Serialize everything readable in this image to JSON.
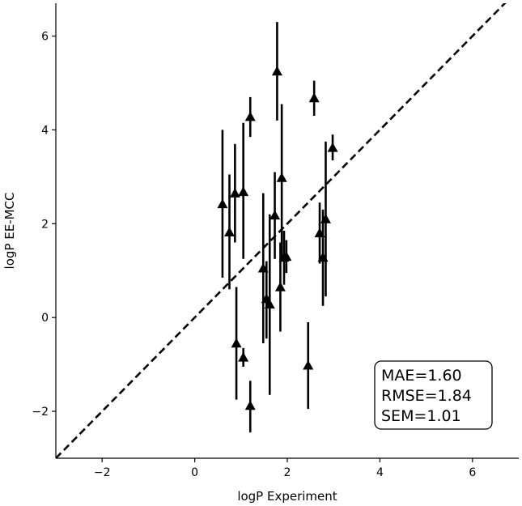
{
  "chart_data": {
    "type": "scatter",
    "xlabel": "logP Experiment",
    "ylabel": "logP EE-MCC",
    "xlim": [
      -3,
      7
    ],
    "ylim": [
      -3,
      6.7
    ],
    "xticks": [
      -2,
      0,
      2,
      4,
      6
    ],
    "yticks": [
      -2,
      0,
      2,
      4,
      6
    ],
    "tick_labels_x": [
      "−2",
      "0",
      "2",
      "4",
      "6"
    ],
    "tick_labels_y": [
      "−2",
      "0",
      "2",
      "4",
      "6"
    ],
    "grid": false,
    "marker": "triangle-up",
    "reference_line": {
      "style": "dashed",
      "from": [
        -3,
        -3
      ],
      "to": [
        7,
        7
      ]
    },
    "points": [
      {
        "x": 0.6,
        "y": 2.42,
        "ylow": 0.85,
        "yhigh": 4.0
      },
      {
        "x": 0.75,
        "y": 1.82,
        "ylow": 0.6,
        "yhigh": 3.05
      },
      {
        "x": 0.87,
        "y": 2.65,
        "ylow": 1.6,
        "yhigh": 3.7
      },
      {
        "x": 0.9,
        "y": -0.55,
        "ylow": -1.75,
        "yhigh": 0.65
      },
      {
        "x": 1.05,
        "y": 2.68,
        "ylow": 1.25,
        "yhigh": 4.15
      },
      {
        "x": 1.05,
        "y": -0.85,
        "ylow": -1.05,
        "yhigh": -0.65
      },
      {
        "x": 1.2,
        "y": 4.28,
        "ylow": 3.85,
        "yhigh": 4.7
      },
      {
        "x": 1.2,
        "y": -1.88,
        "ylow": -2.45,
        "yhigh": -1.35
      },
      {
        "x": 1.48,
        "y": 1.05,
        "ylow": -0.55,
        "yhigh": 2.65
      },
      {
        "x": 1.55,
        "y": 0.4,
        "ylow": -0.45,
        "yhigh": 1.2
      },
      {
        "x": 1.62,
        "y": 0.28,
        "ylow": -1.65,
        "yhigh": 2.2
      },
      {
        "x": 1.73,
        "y": 2.18,
        "ylow": 1.25,
        "yhigh": 3.1
      },
      {
        "x": 1.78,
        "y": 5.25,
        "ylow": 4.2,
        "yhigh": 6.3
      },
      {
        "x": 1.85,
        "y": 0.65,
        "ylow": -0.3,
        "yhigh": 1.6
      },
      {
        "x": 1.88,
        "y": 2.98,
        "ylow": 1.25,
        "yhigh": 4.55
      },
      {
        "x": 1.93,
        "y": 1.28,
        "ylow": 0.7,
        "yhigh": 1.85
      },
      {
        "x": 1.98,
        "y": 1.3,
        "ylow": 0.95,
        "yhigh": 1.65
      },
      {
        "x": 2.45,
        "y": -1.02,
        "ylow": -1.95,
        "yhigh": -0.1
      },
      {
        "x": 2.58,
        "y": 4.68,
        "ylow": 4.3,
        "yhigh": 5.05
      },
      {
        "x": 2.7,
        "y": 1.8,
        "ylow": 1.15,
        "yhigh": 2.45
      },
      {
        "x": 2.77,
        "y": 1.28,
        "ylow": 0.25,
        "yhigh": 2.3
      },
      {
        "x": 2.83,
        "y": 2.1,
        "ylow": 0.45,
        "yhigh": 3.75
      },
      {
        "x": 2.98,
        "y": 3.62,
        "ylow": 3.35,
        "yhigh": 3.9
      }
    ],
    "stats_box": {
      "position": "bottom-right",
      "lines": [
        "MAE=1.60",
        "RMSE=1.84",
        "SEM=1.01"
      ]
    }
  }
}
